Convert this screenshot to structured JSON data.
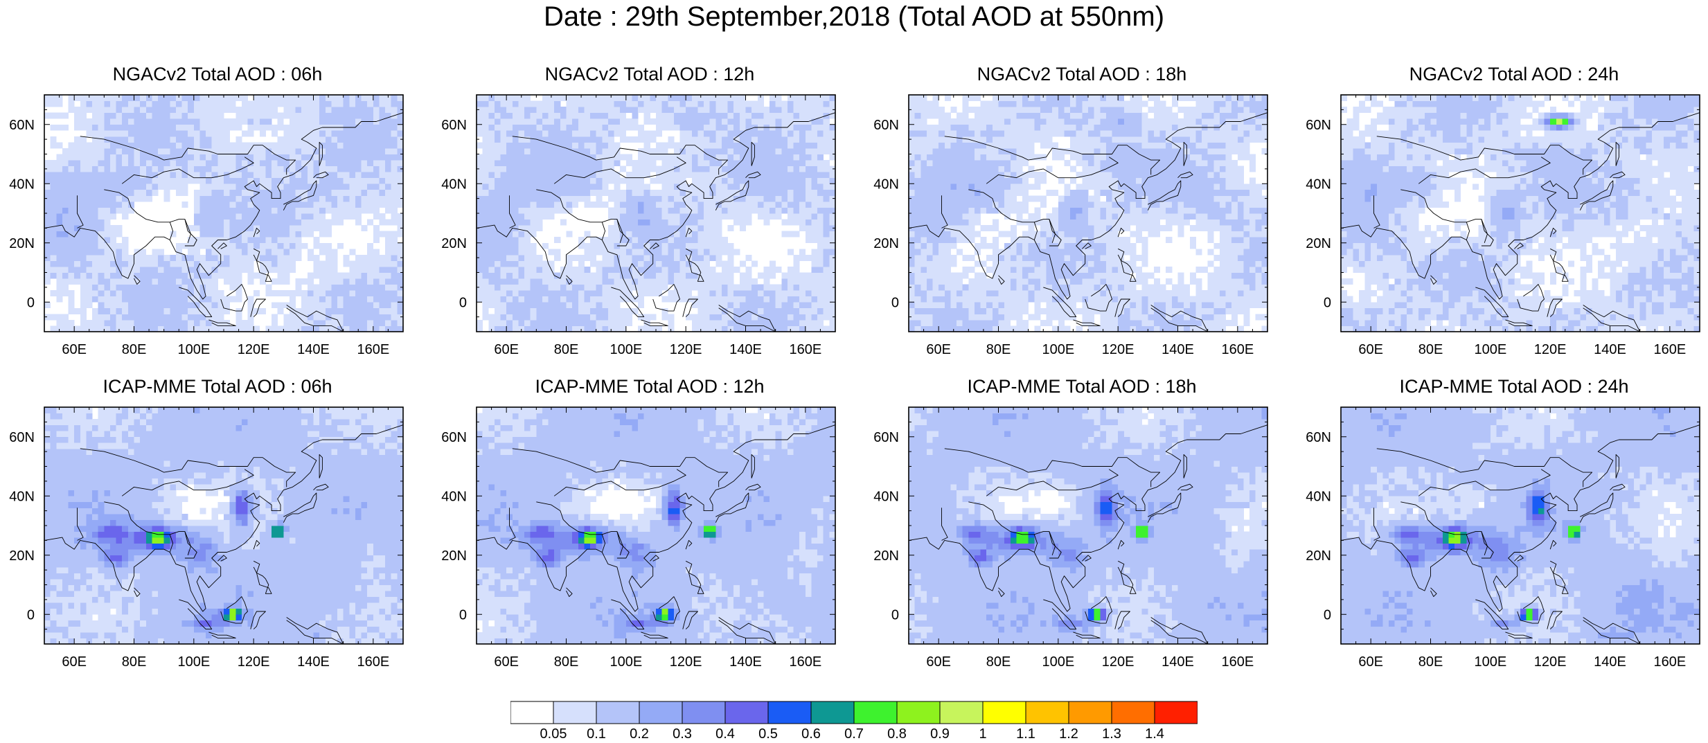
{
  "title": "Date : 29th September,2018 (Total AOD at 550nm)",
  "panels": [
    {
      "title": "NGACv2 Total AOD : 06h",
      "model": "NGACv2",
      "lead": "06h"
    },
    {
      "title": "NGACv2 Total AOD : 12h",
      "model": "NGACv2",
      "lead": "12h"
    },
    {
      "title": "NGACv2 Total AOD : 18h",
      "model": "NGACv2",
      "lead": "18h"
    },
    {
      "title": "NGACv2 Total AOD : 24h",
      "model": "NGACv2",
      "lead": "24h"
    },
    {
      "title": "ICAP-MME Total AOD : 06h",
      "model": "ICAP-MME",
      "lead": "06h"
    },
    {
      "title": "ICAP-MME Total AOD : 12h",
      "model": "ICAP-MME",
      "lead": "12h"
    },
    {
      "title": "ICAP-MME Total AOD : 18h",
      "model": "ICAP-MME",
      "lead": "18h"
    },
    {
      "title": "ICAP-MME Total AOD : 24h",
      "model": "ICAP-MME",
      "lead": "24h"
    }
  ],
  "axes": {
    "lon_range": [
      50,
      170
    ],
    "lat_range": [
      -10,
      70
    ],
    "lon_ticks": [
      "60E",
      "80E",
      "100E",
      "120E",
      "140E",
      "160E"
    ],
    "lon_tick_values": [
      60,
      80,
      100,
      120,
      140,
      160
    ],
    "lat_ticks": [
      "0",
      "20N",
      "40N",
      "60N"
    ],
    "lat_tick_values": [
      0,
      20,
      40,
      60
    ]
  },
  "colorbar": {
    "labels": [
      "0.05",
      "0.1",
      "0.2",
      "0.3",
      "0.4",
      "0.5",
      "0.6",
      "0.7",
      "0.8",
      "0.9",
      "1",
      "1.1",
      "1.2",
      "1.3",
      "1.4"
    ],
    "colors": [
      "#ffffff",
      "#d6e0fc",
      "#b4c4f9",
      "#94aaf6",
      "#7f8ff1",
      "#6a66ec",
      "#1a5cf5",
      "#0e9893",
      "#3ef22e",
      "#8ef21e",
      "#c7f45c",
      "#ffff00",
      "#ffc300",
      "#ff9a00",
      "#ff6e00",
      "#ff2000"
    ]
  }
}
